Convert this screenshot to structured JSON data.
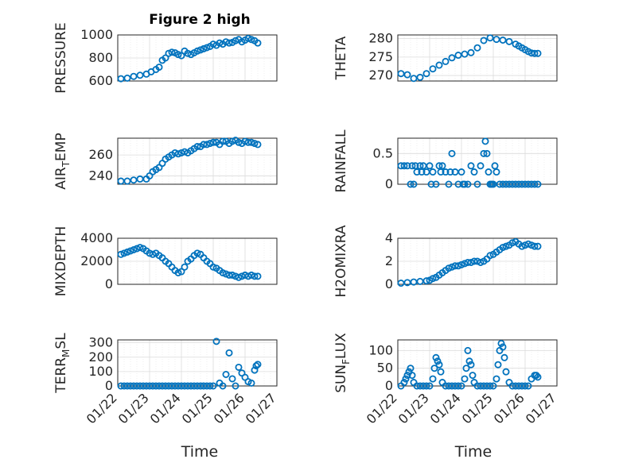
{
  "figure": {
    "title": "Figure 2 high",
    "xlabel": "Time"
  },
  "chart_data": [
    {
      "type": "scatter",
      "ylabel": "PRESSURE",
      "ylim": [
        600,
        1000
      ],
      "yticks": [
        600,
        800,
        1000
      ],
      "xlim": [
        0,
        5
      ],
      "xticks": [
        "01/22",
        "01/23",
        "01/24",
        "01/25",
        "01/26",
        "01/27"
      ],
      "grid": true,
      "marker_color": "#0072BD",
      "show_xticklabels": false,
      "x": [
        0.1,
        0.3,
        0.5,
        0.7,
        0.9,
        1.05,
        1.2,
        1.3,
        1.4,
        1.5,
        1.6,
        1.7,
        1.8,
        1.9,
        2.0,
        2.1,
        2.2,
        2.3,
        2.4,
        2.5,
        2.6,
        2.7,
        2.8,
        2.9,
        3.0,
        3.1,
        3.2,
        3.3,
        3.4,
        3.5,
        3.6,
        3.7,
        3.8,
        3.9,
        4.0,
        4.1,
        4.2,
        4.3,
        4.4
      ],
      "y": [
        620,
        625,
        640,
        650,
        660,
        680,
        700,
        720,
        780,
        800,
        840,
        850,
        845,
        830,
        820,
        860,
        840,
        830,
        845,
        860,
        870,
        880,
        890,
        900,
        920,
        910,
        930,
        920,
        940,
        930,
        935,
        950,
        960,
        940,
        955,
        970,
        960,
        950,
        930
      ]
    },
    {
      "type": "scatter",
      "ylabel": "THETA",
      "ylim": [
        268.5,
        281
      ],
      "yticks": [
        270,
        275,
        280
      ],
      "xlim": [
        0,
        5
      ],
      "xticks": [
        "01/22",
        "01/23",
        "01/24",
        "01/25",
        "01/26",
        "01/27"
      ],
      "grid": true,
      "marker_color": "#0072BD",
      "show_xticklabels": false,
      "x": [
        0.1,
        0.3,
        0.5,
        0.7,
        0.9,
        1.1,
        1.3,
        1.5,
        1.7,
        1.9,
        2.1,
        2.3,
        2.5,
        2.7,
        2.9,
        3.1,
        3.3,
        3.5,
        3.7,
        3.8,
        3.9,
        4.0,
        4.1,
        4.2,
        4.3,
        4.4
      ],
      "y": [
        270.5,
        270.2,
        269.2,
        269.5,
        270.5,
        271.8,
        272.8,
        273.8,
        274.8,
        275.5,
        275.8,
        276.2,
        277.5,
        279.5,
        280.2,
        279.8,
        279.6,
        279.2,
        278.5,
        278.0,
        277.5,
        277.0,
        276.5,
        276.1,
        276.0,
        276.0
      ]
    },
    {
      "type": "scatter",
      "ylabel": "AIR_TEMP",
      "ylim": [
        232,
        276
      ],
      "yticks": [
        240,
        260
      ],
      "xlim": [
        0,
        5
      ],
      "xticks": [
        "01/22",
        "01/23",
        "01/24",
        "01/25",
        "01/26",
        "01/27"
      ],
      "grid": true,
      "marker_color": "#0072BD",
      "show_xticklabels": false,
      "x": [
        0.1,
        0.3,
        0.5,
        0.7,
        0.9,
        1.0,
        1.1,
        1.2,
        1.3,
        1.4,
        1.5,
        1.6,
        1.7,
        1.8,
        1.9,
        2.0,
        2.1,
        2.2,
        2.3,
        2.4,
        2.5,
        2.6,
        2.7,
        2.8,
        2.9,
        3.0,
        3.1,
        3.2,
        3.3,
        3.4,
        3.5,
        3.6,
        3.7,
        3.8,
        3.9,
        4.0,
        4.1,
        4.2,
        4.3,
        4.4
      ],
      "y": [
        235,
        235,
        236,
        237,
        237,
        240,
        244,
        246,
        248,
        252,
        256,
        258,
        260,
        262,
        261,
        262,
        263,
        262,
        264,
        266,
        268,
        268,
        270,
        270,
        271,
        272,
        272,
        270,
        273,
        273,
        271,
        273,
        274,
        272,
        271,
        273,
        272,
        272,
        271,
        270
      ]
    },
    {
      "type": "scatter",
      "ylabel": "RAINFALL",
      "ylim": [
        0,
        0.75
      ],
      "yticks": [
        0,
        0.5
      ],
      "xlim": [
        0,
        5
      ],
      "xticks": [
        "01/22",
        "01/23",
        "01/24",
        "01/25",
        "01/26",
        "01/27"
      ],
      "grid": true,
      "marker_color": "#0072BD",
      "show_xticklabels": false,
      "x": [
        0.1,
        0.2,
        0.3,
        0.4,
        0.45,
        0.5,
        0.55,
        0.6,
        0.7,
        0.75,
        0.8,
        0.9,
        1.0,
        1.05,
        1.1,
        1.2,
        1.3,
        1.35,
        1.4,
        1.5,
        1.6,
        1.65,
        1.7,
        1.8,
        1.9,
        2.0,
        2.05,
        2.1,
        2.2,
        2.3,
        2.4,
        2.5,
        2.6,
        2.7,
        2.75,
        2.8,
        2.85,
        2.9,
        2.95,
        3.0,
        3.05,
        3.1,
        3.2,
        3.3,
        3.4,
        3.5,
        3.6,
        3.7,
        3.8,
        3.9,
        4.0,
        4.1,
        4.2,
        4.3,
        4.4
      ],
      "y": [
        0.3,
        0.3,
        0.3,
        0.0,
        0.3,
        0.0,
        0.3,
        0.2,
        0.3,
        0.2,
        0.3,
        0.2,
        0.3,
        0.0,
        0.2,
        0.0,
        0.3,
        0.2,
        0.3,
        0.2,
        0.0,
        0.2,
        0.5,
        0.2,
        0.0,
        0.2,
        0.0,
        0.0,
        0.0,
        0.3,
        0.2,
        0.0,
        0.3,
        0.5,
        0.7,
        0.5,
        0.2,
        0.0,
        0.0,
        0.0,
        0.3,
        0.2,
        0.0,
        0.0,
        0.0,
        0.0,
        0.0,
        0.0,
        0.0,
        0.0,
        0.0,
        0.0,
        0.0,
        0.0,
        0.0
      ]
    },
    {
      "type": "scatter",
      "ylabel": "MIXDEPTH",
      "ylim": [
        0,
        4000
      ],
      "yticks": [
        0,
        2000,
        4000
      ],
      "xlim": [
        0,
        5
      ],
      "xticks": [
        "01/22",
        "01/23",
        "01/24",
        "01/25",
        "01/26",
        "01/27"
      ],
      "grid": true,
      "marker_color": "#0072BD",
      "show_xticklabels": false,
      "x": [
        0.1,
        0.2,
        0.3,
        0.4,
        0.5,
        0.6,
        0.7,
        0.8,
        0.9,
        1.0,
        1.1,
        1.2,
        1.3,
        1.4,
        1.5,
        1.6,
        1.7,
        1.8,
        1.9,
        2.0,
        2.1,
        2.2,
        2.3,
        2.4,
        2.5,
        2.6,
        2.7,
        2.8,
        2.9,
        3.0,
        3.1,
        3.2,
        3.3,
        3.4,
        3.5,
        3.6,
        3.7,
        3.8,
        3.9,
        4.0,
        4.1,
        4.2,
        4.3,
        4.4
      ],
      "y": [
        2600,
        2700,
        2800,
        2900,
        3000,
        3100,
        3200,
        3100,
        2900,
        2700,
        2600,
        2700,
        2500,
        2300,
        2000,
        1800,
        1500,
        1200,
        1000,
        1100,
        1500,
        2000,
        2200,
        2500,
        2700,
        2600,
        2300,
        2000,
        1800,
        1500,
        1400,
        1200,
        1000,
        900,
        800,
        800,
        700,
        600,
        700,
        800,
        700,
        800,
        700,
        700
      ]
    },
    {
      "type": "scatter",
      "ylabel": "H2OMIXRA",
      "ylim": [
        0,
        4
      ],
      "yticks": [
        0,
        2,
        4
      ],
      "xlim": [
        0,
        5
      ],
      "xticks": [
        "01/22",
        "01/23",
        "01/24",
        "01/25",
        "01/26",
        "01/27"
      ],
      "grid": true,
      "marker_color": "#0072BD",
      "show_xticklabels": false,
      "x": [
        0.1,
        0.3,
        0.5,
        0.7,
        0.9,
        1.0,
        1.1,
        1.2,
        1.3,
        1.4,
        1.5,
        1.6,
        1.7,
        1.8,
        1.9,
        2.0,
        2.1,
        2.2,
        2.3,
        2.4,
        2.5,
        2.6,
        2.7,
        2.8,
        2.9,
        3.0,
        3.1,
        3.2,
        3.3,
        3.4,
        3.5,
        3.6,
        3.7,
        3.8,
        3.9,
        4.0,
        4.1,
        4.2,
        4.3,
        4.4
      ],
      "y": [
        0.1,
        0.15,
        0.2,
        0.25,
        0.3,
        0.35,
        0.5,
        0.6,
        0.8,
        1.0,
        1.2,
        1.4,
        1.5,
        1.6,
        1.6,
        1.7,
        1.8,
        1.9,
        1.9,
        2.0,
        2.0,
        1.9,
        2.0,
        2.2,
        2.5,
        2.6,
        2.8,
        3.0,
        3.2,
        3.3,
        3.4,
        3.6,
        3.7,
        3.5,
        3.3,
        3.4,
        3.5,
        3.4,
        3.3,
        3.3
      ]
    },
    {
      "type": "scatter",
      "ylabel": "TERR_MSL",
      "ylim": [
        0,
        320
      ],
      "yticks": [
        0,
        100,
        200,
        300
      ],
      "xlim": [
        0,
        5
      ],
      "xticks": [
        "01/22",
        "01/23",
        "01/24",
        "01/25",
        "01/26",
        "01/27"
      ],
      "grid": true,
      "marker_color": "#0072BD",
      "show_xticklabels": true,
      "x": [
        0.1,
        0.2,
        0.3,
        0.4,
        0.5,
        0.6,
        0.7,
        0.8,
        0.9,
        1.0,
        1.1,
        1.2,
        1.3,
        1.4,
        1.5,
        1.6,
        1.7,
        1.8,
        1.9,
        2.0,
        2.1,
        2.2,
        2.3,
        2.4,
        2.5,
        2.6,
        2.7,
        2.8,
        2.9,
        3.0,
        3.1,
        3.2,
        3.3,
        3.4,
        3.5,
        3.6,
        3.7,
        3.8,
        3.9,
        4.0,
        4.1,
        4.2,
        4.3,
        4.35,
        4.4
      ],
      "y": [
        0,
        0,
        0,
        0,
        0,
        0,
        0,
        0,
        0,
        0,
        0,
        0,
        0,
        0,
        0,
        0,
        0,
        0,
        0,
        0,
        0,
        0,
        0,
        0,
        0,
        0,
        0,
        0,
        0,
        0,
        310,
        20,
        0,
        80,
        230,
        50,
        0,
        130,
        90,
        60,
        30,
        20,
        110,
        140,
        150
      ]
    },
    {
      "type": "scatter",
      "ylabel": "SUN_FLUX",
      "ylim": [
        0,
        130
      ],
      "yticks": [
        0,
        50,
        100
      ],
      "xlim": [
        0,
        5
      ],
      "xticks": [
        "01/22",
        "01/23",
        "01/24",
        "01/25",
        "01/26",
        "01/27"
      ],
      "grid": true,
      "marker_color": "#0072BD",
      "show_xticklabels": true,
      "x": [
        0.1,
        0.2,
        0.25,
        0.3,
        0.35,
        0.4,
        0.45,
        0.5,
        0.6,
        0.7,
        0.8,
        0.9,
        1.0,
        1.1,
        1.15,
        1.2,
        1.25,
        1.3,
        1.35,
        1.4,
        1.5,
        1.6,
        1.7,
        1.8,
        1.9,
        2.0,
        2.1,
        2.15,
        2.2,
        2.25,
        2.3,
        2.35,
        2.4,
        2.5,
        2.6,
        2.7,
        2.8,
        2.9,
        3.0,
        3.1,
        3.15,
        3.2,
        3.25,
        3.3,
        3.35,
        3.4,
        3.5,
        3.6,
        3.7,
        3.8,
        3.9,
        4.0,
        4.1,
        4.2,
        4.3,
        4.35,
        4.4
      ],
      "y": [
        0,
        10,
        20,
        30,
        40,
        50,
        30,
        10,
        0,
        0,
        0,
        0,
        0,
        20,
        50,
        80,
        70,
        60,
        40,
        10,
        0,
        0,
        0,
        0,
        0,
        0,
        20,
        50,
        100,
        70,
        60,
        30,
        10,
        0,
        0,
        0,
        0,
        0,
        0,
        20,
        60,
        100,
        120,
        110,
        80,
        40,
        10,
        0,
        0,
        0,
        0,
        0,
        0,
        20,
        30,
        30,
        25
      ]
    }
  ]
}
